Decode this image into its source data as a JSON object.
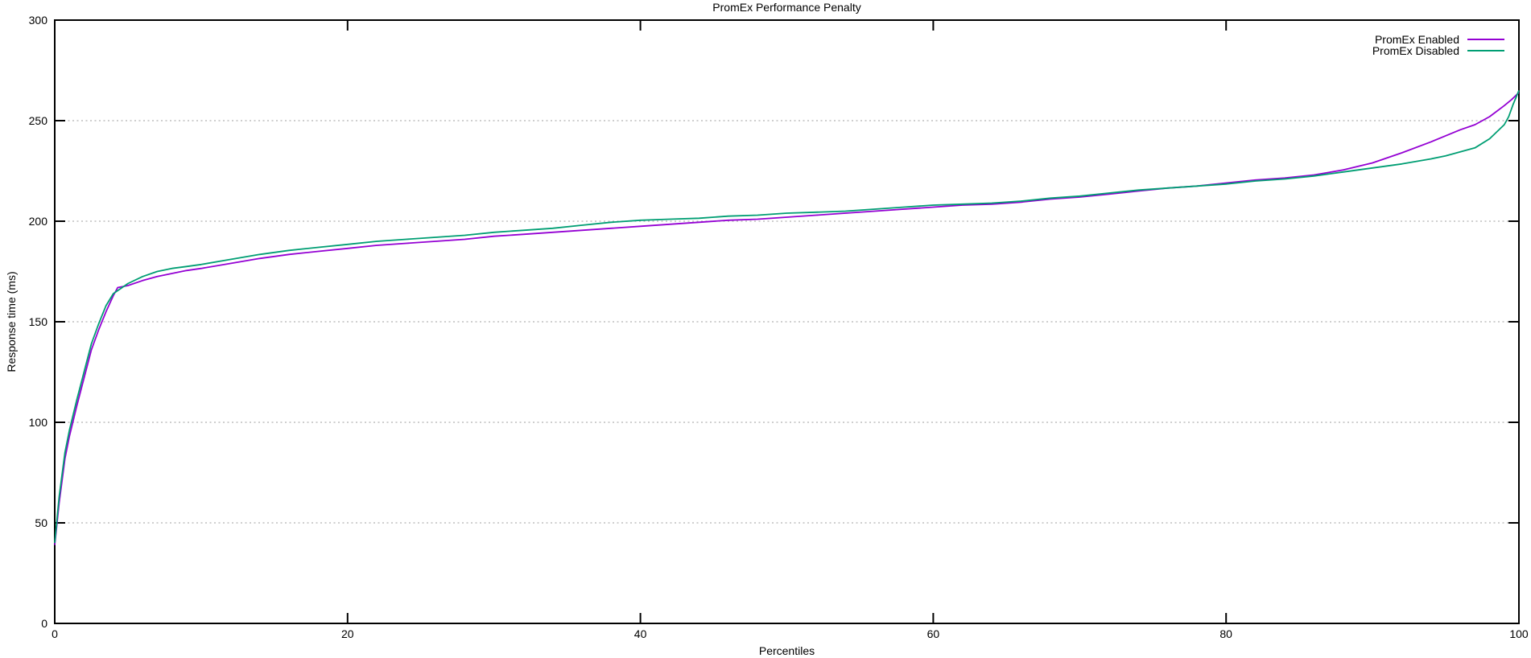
{
  "colors": {
    "background": "#ffffff",
    "axis": "#000000",
    "grid": "#b0b0b0",
    "text": "#000000",
    "series_enabled": "#9400d3",
    "series_disabled": "#009e73"
  },
  "chart_data": {
    "type": "line",
    "title": "PromEx Performance Penalty",
    "xlabel": "Percentiles",
    "ylabel": "Response time (ms)",
    "xlim": [
      0,
      100
    ],
    "ylim": [
      0,
      300
    ],
    "xticks": [
      0,
      20,
      40,
      60,
      80,
      100
    ],
    "yticks": [
      0,
      50,
      100,
      150,
      200,
      250,
      300
    ],
    "grid": "horizontal dotted gridlines at y ticks only",
    "legend_position": "top-right inside plot, labels left of line samples",
    "border": "full box with mirrored inward ticks",
    "series": [
      {
        "name": "PromEx Enabled",
        "color": "#9400d3",
        "points": [
          [
            0,
            39
          ],
          [
            0.3,
            60
          ],
          [
            0.7,
            82
          ],
          [
            1,
            93
          ],
          [
            1.5,
            108
          ],
          [
            2,
            122
          ],
          [
            2.5,
            136
          ],
          [
            3,
            146
          ],
          [
            3.5,
            155
          ],
          [
            4,
            163
          ],
          [
            4.3,
            167
          ],
          [
            5,
            168
          ],
          [
            6,
            170.5
          ],
          [
            7,
            172.5
          ],
          [
            8,
            174
          ],
          [
            9,
            175.5
          ],
          [
            10,
            176.5
          ],
          [
            12,
            179
          ],
          [
            14,
            181.5
          ],
          [
            16,
            183.5
          ],
          [
            18,
            185
          ],
          [
            20,
            186.5
          ],
          [
            22,
            188
          ],
          [
            24,
            189
          ],
          [
            26,
            190
          ],
          [
            28,
            191
          ],
          [
            30,
            192.5
          ],
          [
            32,
            193.5
          ],
          [
            34,
            194.5
          ],
          [
            36,
            195.5
          ],
          [
            38,
            196.5
          ],
          [
            40,
            197.5
          ],
          [
            42,
            198.5
          ],
          [
            44,
            199.5
          ],
          [
            46,
            200.5
          ],
          [
            48,
            201
          ],
          [
            50,
            202
          ],
          [
            52,
            203
          ],
          [
            54,
            204
          ],
          [
            56,
            205
          ],
          [
            58,
            206
          ],
          [
            60,
            207
          ],
          [
            62,
            208
          ],
          [
            64,
            208.5
          ],
          [
            66,
            209.5
          ],
          [
            68,
            211
          ],
          [
            70,
            212
          ],
          [
            72,
            213.5
          ],
          [
            74,
            215
          ],
          [
            76,
            216.5
          ],
          [
            78,
            217.5
          ],
          [
            80,
            219
          ],
          [
            82,
            220.5
          ],
          [
            84,
            221.5
          ],
          [
            86,
            223
          ],
          [
            88,
            225.5
          ],
          [
            90,
            229
          ],
          [
            92,
            234
          ],
          [
            94,
            239.5
          ],
          [
            95,
            242.5
          ],
          [
            96,
            245.5
          ],
          [
            97,
            248
          ],
          [
            98,
            252
          ],
          [
            99,
            257.5
          ],
          [
            99.5,
            260.5
          ],
          [
            100,
            264
          ]
        ]
      },
      {
        "name": "PromEx Disabled",
        "color": "#009e73",
        "points": [
          [
            0,
            40
          ],
          [
            0.3,
            63
          ],
          [
            0.7,
            85
          ],
          [
            1,
            96
          ],
          [
            1.5,
            111
          ],
          [
            2,
            125
          ],
          [
            2.5,
            139
          ],
          [
            3,
            149
          ],
          [
            3.5,
            158
          ],
          [
            4,
            164
          ],
          [
            4.5,
            166.5
          ],
          [
            5,
            169
          ],
          [
            6,
            172.5
          ],
          [
            7,
            175
          ],
          [
            8,
            176.5
          ],
          [
            9,
            177.5
          ],
          [
            10,
            178.5
          ],
          [
            12,
            181
          ],
          [
            14,
            183.5
          ],
          [
            16,
            185.5
          ],
          [
            18,
            187
          ],
          [
            20,
            188.5
          ],
          [
            22,
            190
          ],
          [
            24,
            191
          ],
          [
            26,
            192
          ],
          [
            28,
            193
          ],
          [
            30,
            194.5
          ],
          [
            32,
            195.5
          ],
          [
            34,
            196.5
          ],
          [
            36,
            198
          ],
          [
            38,
            199.5
          ],
          [
            40,
            200.5
          ],
          [
            42,
            201
          ],
          [
            44,
            201.5
          ],
          [
            46,
            202.5
          ],
          [
            48,
            203
          ],
          [
            50,
            204
          ],
          [
            52,
            204.5
          ],
          [
            54,
            205
          ],
          [
            56,
            206
          ],
          [
            58,
            207
          ],
          [
            60,
            208
          ],
          [
            62,
            208.5
          ],
          [
            64,
            209
          ],
          [
            66,
            210
          ],
          [
            68,
            211.5
          ],
          [
            70,
            212.5
          ],
          [
            72,
            214
          ],
          [
            74,
            215.5
          ],
          [
            76,
            216.5
          ],
          [
            78,
            217.5
          ],
          [
            80,
            218.5
          ],
          [
            82,
            220
          ],
          [
            84,
            221
          ],
          [
            86,
            222.5
          ],
          [
            88,
            224.5
          ],
          [
            90,
            226.5
          ],
          [
            92,
            228.5
          ],
          [
            94,
            231
          ],
          [
            95,
            232.5
          ],
          [
            96,
            234.5
          ],
          [
            97,
            236.5
          ],
          [
            98,
            241
          ],
          [
            99,
            248
          ],
          [
            99.3,
            252
          ],
          [
            99.6,
            258
          ],
          [
            100,
            265
          ]
        ]
      }
    ]
  }
}
